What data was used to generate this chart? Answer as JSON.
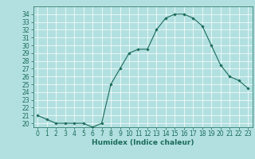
{
  "x": [
    0,
    1,
    2,
    3,
    4,
    5,
    6,
    7,
    8,
    9,
    10,
    11,
    12,
    13,
    14,
    15,
    16,
    17,
    18,
    19,
    20,
    21,
    22,
    23
  ],
  "y": [
    21.0,
    20.5,
    20.0,
    20.0,
    20.0,
    20.0,
    19.5,
    20.0,
    25.0,
    27.0,
    29.0,
    29.5,
    29.5,
    32.0,
    33.5,
    34.0,
    34.0,
    33.5,
    32.5,
    30.0,
    27.5,
    26.0,
    25.5,
    24.5
  ],
  "xlabel": "Humidex (Indice chaleur)",
  "ylim": [
    19.5,
    35.0
  ],
  "xlim": [
    -0.5,
    23.5
  ],
  "yticks": [
    20,
    21,
    22,
    23,
    24,
    25,
    26,
    27,
    28,
    29,
    30,
    31,
    32,
    33,
    34
  ],
  "xticks": [
    0,
    1,
    2,
    3,
    4,
    5,
    6,
    7,
    8,
    9,
    10,
    11,
    12,
    13,
    14,
    15,
    16,
    17,
    18,
    19,
    20,
    21,
    22,
    23
  ],
  "line_color": "#1a6b5a",
  "marker": "D",
  "marker_size": 1.8,
  "bg_color": "#b2e0e0",
  "grid_color": "#ffffff",
  "tick_label_fontsize": 5.5,
  "xlabel_fontsize": 6.5
}
